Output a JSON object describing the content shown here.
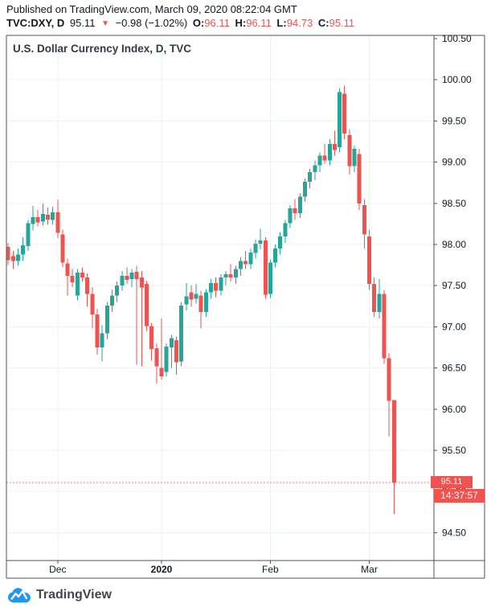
{
  "header": {
    "published": "Published on TradingView.com, March 09, 2020 08:22:04 GMT",
    "symbol": "TVC:DXY, D",
    "price": "95.11",
    "direction_icon": "▼",
    "change": "−0.98 (−1.02%)",
    "ohlc": [
      {
        "label": "O:",
        "value": "96.11"
      },
      {
        "label": "H:",
        "value": "96.11"
      },
      {
        "label": "L:",
        "value": "94.73"
      },
      {
        "label": "C:",
        "value": "95.11"
      }
    ]
  },
  "chart": {
    "title": "U.S. Dollar Currency Index, D, TVC",
    "last_price_label": "95.11",
    "countdown": "14:37:57"
  },
  "footer": {
    "brand": "TradingView"
  },
  "colors": {
    "up": "#26a69a",
    "down": "#ef5350",
    "accent_red": "#ef5350",
    "grid": "#edf0f6",
    "frame": "#4c5058",
    "text": "#131722",
    "brand_blue": "#2196f3"
  },
  "chart_data": {
    "type": "candlestick",
    "title": "U.S. Dollar Currency Index, D, TVC",
    "symbol": "TVC:DXY",
    "interval": "D",
    "last_close": 95.11,
    "last_ohlc": {
      "open": 96.11,
      "high": 96.11,
      "low": 94.73,
      "close": 95.11
    },
    "ylim": [
      94.16,
      100.54
    ],
    "y_ticks": [
      100.5,
      100.0,
      99.5,
      99.0,
      98.5,
      98.0,
      97.5,
      97.0,
      96.5,
      96.0,
      95.5,
      95.0,
      94.5
    ],
    "x_axis_labels": [
      {
        "label": "Dec",
        "index": 10,
        "bold": false
      },
      {
        "label": "2020",
        "index": 31,
        "bold": true
      },
      {
        "label": "Feb",
        "index": 53,
        "bold": false
      },
      {
        "label": "Mar",
        "index": 73,
        "bold": false
      }
    ],
    "candles": [
      [
        97.97,
        98.02,
        97.75,
        97.81
      ],
      [
        97.86,
        97.92,
        97.7,
        97.8
      ],
      [
        97.8,
        97.95,
        97.74,
        97.88
      ],
      [
        97.88,
        98.09,
        97.8,
        97.99
      ],
      [
        97.98,
        98.3,
        97.92,
        98.26
      ],
      [
        98.25,
        98.47,
        98.17,
        98.33
      ],
      [
        98.33,
        98.42,
        98.22,
        98.27
      ],
      [
        98.28,
        98.5,
        98.23,
        98.37
      ],
      [
        98.36,
        98.45,
        98.24,
        98.3
      ],
      [
        98.3,
        98.46,
        98.24,
        98.39
      ],
      [
        98.39,
        98.54,
        98.08,
        98.14
      ],
      [
        98.12,
        98.18,
        97.72,
        97.78
      ],
      [
        97.77,
        97.83,
        97.38,
        97.62
      ],
      [
        97.62,
        97.7,
        97.48,
        97.54
      ],
      [
        97.38,
        97.7,
        97.32,
        97.66
      ],
      [
        97.66,
        97.72,
        97.55,
        97.6
      ],
      [
        97.6,
        97.65,
        97.25,
        97.4
      ],
      [
        97.4,
        97.48,
        96.98,
        97.15
      ],
      [
        97.15,
        97.22,
        96.66,
        96.75
      ],
      [
        96.75,
        97.02,
        96.58,
        96.92
      ],
      [
        96.92,
        97.3,
        96.85,
        97.26
      ],
      [
        97.26,
        97.45,
        97.18,
        97.38
      ],
      [
        97.38,
        97.55,
        97.3,
        97.5
      ],
      [
        97.5,
        97.68,
        97.44,
        97.62
      ],
      [
        97.62,
        97.72,
        97.52,
        97.57
      ],
      [
        97.58,
        97.7,
        97.48,
        97.66
      ],
      [
        97.67,
        97.74,
        96.54,
        97.58
      ],
      [
        97.6,
        97.68,
        96.52,
        97.48
      ],
      [
        97.52,
        97.56,
        96.95,
        97.01
      ],
      [
        97.01,
        97.05,
        96.59,
        96.73
      ],
      [
        96.74,
        96.8,
        96.31,
        96.52
      ],
      [
        96.5,
        97.1,
        96.36,
        96.4
      ],
      [
        96.45,
        96.8,
        96.4,
        96.76
      ],
      [
        96.75,
        96.9,
        96.5,
        96.86
      ],
      [
        96.84,
        96.88,
        96.42,
        96.57
      ],
      [
        96.58,
        97.3,
        96.52,
        97.26
      ],
      [
        97.27,
        97.53,
        97.2,
        97.37
      ],
      [
        97.42,
        97.5,
        97.25,
        97.33
      ],
      [
        97.34,
        97.52,
        97.28,
        97.4
      ],
      [
        97.38,
        97.44,
        96.98,
        97.18
      ],
      [
        97.18,
        97.46,
        97.12,
        97.42
      ],
      [
        97.42,
        97.58,
        97.34,
        97.53
      ],
      [
        97.53,
        97.6,
        97.36,
        97.44
      ],
      [
        97.44,
        97.64,
        97.38,
        97.6
      ],
      [
        97.6,
        97.68,
        97.5,
        97.64
      ],
      [
        97.64,
        97.76,
        97.55,
        97.6
      ],
      [
        97.6,
        97.74,
        97.52,
        97.7
      ],
      [
        97.7,
        97.85,
        97.62,
        97.8
      ],
      [
        97.8,
        97.92,
        97.7,
        97.76
      ],
      [
        97.76,
        97.95,
        97.7,
        97.9
      ],
      [
        97.9,
        98.06,
        97.83,
        98.01
      ],
      [
        98.01,
        98.19,
        97.94,
        98.05
      ],
      [
        98.05,
        98.09,
        97.34,
        97.39
      ],
      [
        97.4,
        97.82,
        97.35,
        97.78
      ],
      [
        97.78,
        98.0,
        97.72,
        97.95
      ],
      [
        97.95,
        98.15,
        97.88,
        98.1
      ],
      [
        98.1,
        98.3,
        98.02,
        98.26
      ],
      [
        98.26,
        98.48,
        98.2,
        98.44
      ],
      [
        98.44,
        98.55,
        98.3,
        98.38
      ],
      [
        98.38,
        98.62,
        98.32,
        98.58
      ],
      [
        98.58,
        98.8,
        98.52,
        98.76
      ],
      [
        98.76,
        98.92,
        98.68,
        98.88
      ],
      [
        98.88,
        99.02,
        98.78,
        98.96
      ],
      [
        98.96,
        99.12,
        98.88,
        99.08
      ],
      [
        99.08,
        99.22,
        98.98,
        99.02
      ],
      [
        99.02,
        99.28,
        98.96,
        99.22
      ],
      [
        99.22,
        99.38,
        99.08,
        99.15
      ],
      [
        99.18,
        99.9,
        99.12,
        99.85
      ],
      [
        99.83,
        99.93,
        99.28,
        99.35
      ],
      [
        99.33,
        99.4,
        98.85,
        98.95
      ],
      [
        98.95,
        99.2,
        98.88,
        99.16
      ],
      [
        99.1,
        99.16,
        98.42,
        98.5
      ],
      [
        98.48,
        98.55,
        97.95,
        98.12
      ],
      [
        98.1,
        98.18,
        97.45,
        97.52
      ],
      [
        97.52,
        97.6,
        97.12,
        97.18
      ],
      [
        97.18,
        97.58,
        97.1,
        97.4
      ],
      [
        97.4,
        97.45,
        96.55,
        96.62
      ],
      [
        96.62,
        96.68,
        95.67,
        96.1
      ],
      [
        96.11,
        96.11,
        94.73,
        95.11
      ]
    ]
  }
}
